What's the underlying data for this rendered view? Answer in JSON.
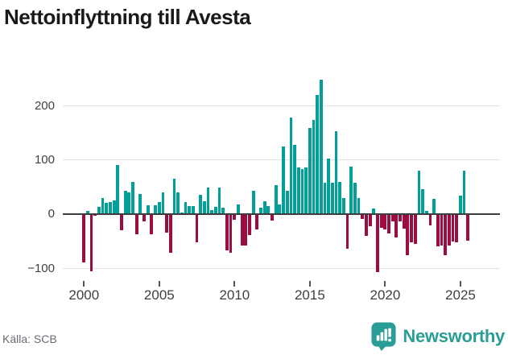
{
  "title": "Nettoinflyttning till Avesta",
  "source": "Källa: SCB",
  "brand": {
    "name": "Newsworthy",
    "color": "#2a9d96",
    "icon": "bar-chart-speech-bubble-icon"
  },
  "colors": {
    "positive": "#00a099",
    "negative": "#9c0d43",
    "zero_line": "#3d3d3d",
    "gridline": "#e2e2e2",
    "axis_text": "#404040"
  },
  "chart_data": {
    "type": "bar",
    "title": "Nettoinflyttning till Avesta",
    "period": "quarterly",
    "start": "2000-Q1",
    "end": "2025-Q3",
    "grid": "horizontal",
    "legend": "none",
    "ylim": [
      -130,
      265
    ],
    "y_ticks": [
      200,
      100,
      0,
      -100
    ],
    "y_tick_labels": [
      "200",
      "100",
      "0",
      "−100"
    ],
    "x_tick_years": [
      2000,
      2005,
      2010,
      2015,
      2020,
      2025
    ],
    "x_tick_labels": [
      "2000",
      "2005",
      "2010",
      "2015",
      "2020",
      "2025"
    ],
    "values": [
      -87,
      5,
      -104,
      -2,
      13,
      30,
      21,
      22,
      25,
      90,
      -28,
      42,
      40,
      59,
      -35,
      37,
      -12,
      16,
      -35,
      16,
      22,
      40,
      -33,
      -70,
      65,
      40,
      3,
      22,
      14,
      15,
      -51,
      35,
      23,
      48,
      7,
      13,
      48,
      11,
      -65,
      -69,
      -9,
      17,
      -57,
      -56,
      -37,
      42,
      -27,
      12,
      23,
      15,
      -10,
      53,
      17,
      124,
      42,
      178,
      127,
      85,
      83,
      86,
      159,
      173,
      219,
      247,
      58,
      102,
      58,
      153,
      59,
      30,
      -63,
      87,
      57,
      30,
      -8,
      -38,
      -21,
      10,
      -105,
      -23,
      -26,
      -34,
      -12,
      -41,
      -12,
      -25,
      -74,
      -51,
      -53,
      80,
      45,
      5,
      -19,
      28,
      -58,
      -56,
      -74,
      -57,
      -49,
      -51,
      34,
      80,
      -48
    ]
  }
}
